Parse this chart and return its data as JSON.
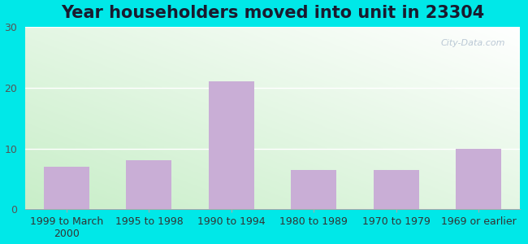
{
  "title": "Year householders moved into unit in 23304",
  "categories": [
    "1999 to March\n2000",
    "1995 to 1998",
    "1990 to 1994",
    "1980 to 1989",
    "1970 to 1979",
    "1969 or earlier"
  ],
  "values": [
    7,
    8,
    21,
    6.5,
    6.5,
    10
  ],
  "bar_color": "#c9aed6",
  "background_outer": "#00e8e8",
  "ylim": [
    0,
    30
  ],
  "yticks": [
    0,
    10,
    20,
    30
  ],
  "title_fontsize": 15,
  "tick_fontsize": 9,
  "watermark": "City-Data.com",
  "gradient_bottom_left": "#c8eec8",
  "gradient_top_right": "#ffffff",
  "title_color": "#1a1a2e"
}
